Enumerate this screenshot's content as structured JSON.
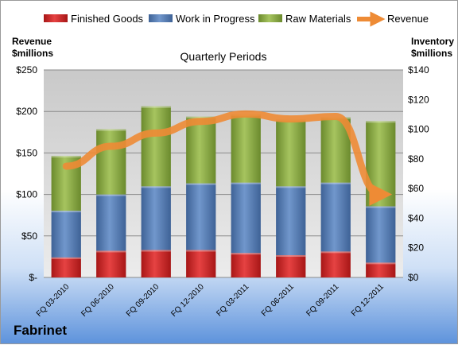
{
  "company": "Fabrinet",
  "chart_data": {
    "type": "bar",
    "title": "Quarterly Periods",
    "left_axis_label": [
      "Revenue",
      "$millions"
    ],
    "right_axis_label": [
      "Inventory",
      "$millions"
    ],
    "categories": [
      "FQ 03-2010",
      "FQ 06-2010",
      "FQ 09-2010",
      "FQ 12-2010",
      "FQ 03-2011",
      "FQ 06-2011",
      "FQ 09-2011",
      "FQ 12-2011"
    ],
    "left_ticks": [
      "$-",
      "$50",
      "$100",
      "$150",
      "$200",
      "$250"
    ],
    "right_ticks": [
      "$0",
      "$20",
      "$40",
      "$60",
      "$80",
      "$100",
      "$120",
      "$140"
    ],
    "ylim_left": [
      0,
      250
    ],
    "ylim_right": [
      0,
      140
    ],
    "stacked_series_axis": "right",
    "series": [
      {
        "name": "Finished Goods",
        "color": "#d42a2a",
        "values": [
          13.5,
          18,
          18.5,
          18.5,
          16.5,
          15,
          17.5,
          10
        ]
      },
      {
        "name": "Work in Progress",
        "color": "#5a82b8",
        "values": [
          31.5,
          38,
          43,
          45,
          47.5,
          46.5,
          46.5,
          38
        ]
      },
      {
        "name": "Raw Materials",
        "color": "#8fb049",
        "values": [
          37,
          44,
          54,
          45,
          46,
          45,
          44,
          57.5
        ]
      }
    ],
    "line_series": {
      "name": "Revenue",
      "color": "#ee8b35",
      "axis": "left",
      "values": [
        134,
        158,
        174,
        188,
        197,
        191,
        194,
        100
      ]
    },
    "legend_position": "top",
    "grid": true
  }
}
